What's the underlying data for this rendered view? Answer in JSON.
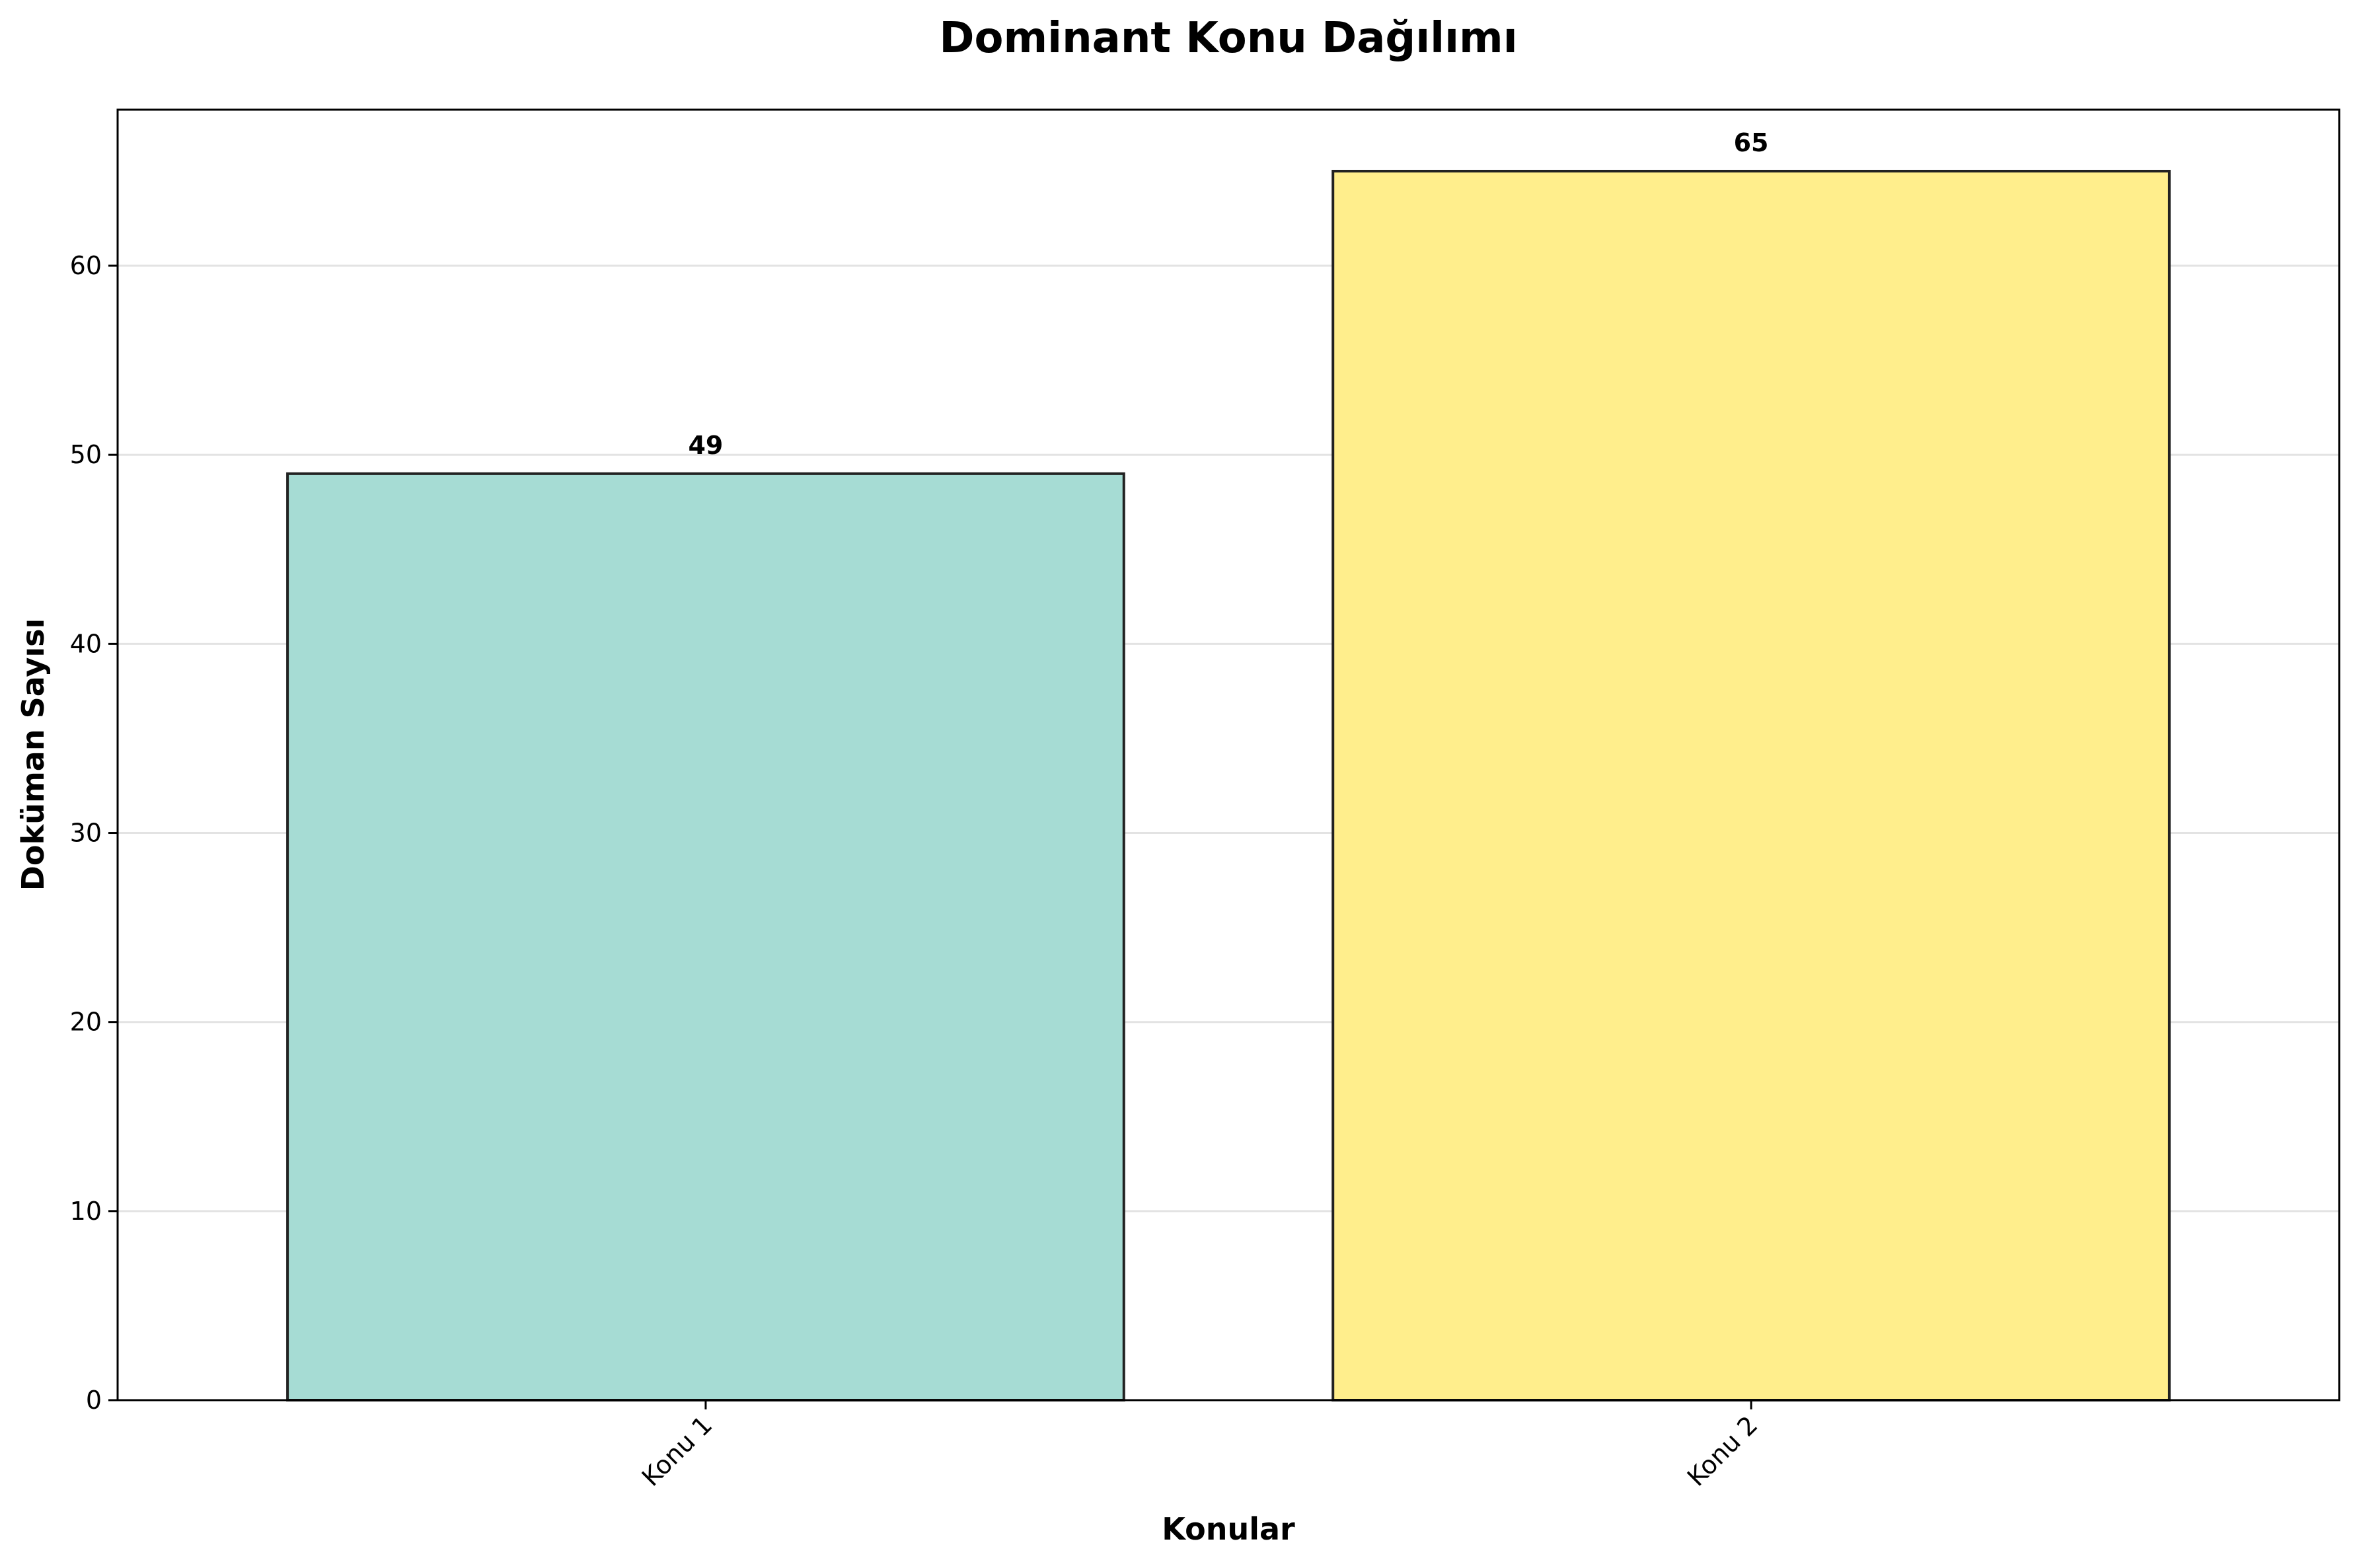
{
  "chart_data": {
    "type": "bar",
    "title": "Dominant Konu Dağılımı",
    "xlabel": "Konular",
    "ylabel": "Doküman Sayısı",
    "categories": [
      "Konu 1",
      "Konu 2"
    ],
    "values": [
      49,
      65
    ],
    "data_labels": [
      "49",
      "65"
    ],
    "colors": [
      "#a6dcd4",
      "#ffee8c"
    ],
    "edge_color": "#222222",
    "ylim": [
      0,
      68.25
    ],
    "yticks": [
      0,
      10,
      20,
      30,
      40,
      50,
      60
    ],
    "ytick_labels": [
      "0",
      "10",
      "20",
      "30",
      "40",
      "50",
      "60"
    ],
    "xtick_rotation": 45,
    "grid": "y",
    "legend": "none"
  }
}
